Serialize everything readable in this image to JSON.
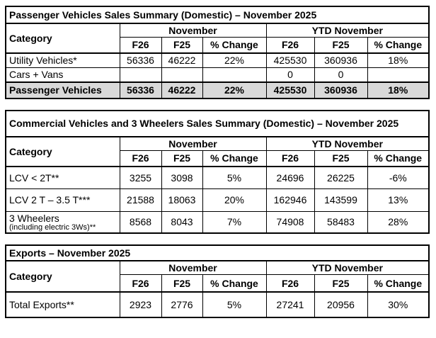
{
  "colors": {
    "highlight_row": "#d9d9d9",
    "border": "#000000",
    "text": "#000000",
    "background": "#ffffff"
  },
  "tables": [
    {
      "title": "Passenger Vehicles Sales Summary (Domestic) – November 2025",
      "col_category": "Category",
      "col_november": "November",
      "col_ytd": "YTD November",
      "sub": [
        "F26",
        "F25",
        "% Change",
        "F26",
        "F25",
        "% Change"
      ],
      "rows": [
        {
          "category": "Utility Vehicles*",
          "note": "",
          "values": [
            "56336",
            "46222",
            "22%",
            "425530",
            "360936",
            "18%"
          ]
        },
        {
          "category": "Cars + Vans",
          "note": "",
          "values": [
            "",
            "",
            "",
            "0",
            "0",
            ""
          ]
        },
        {
          "category": "Passenger Vehicles",
          "note": "",
          "values": [
            "56336",
            "46222",
            "22%",
            "425530",
            "360936",
            "18%"
          ]
        }
      ]
    },
    {
      "title": "Commercial Vehicles and 3 Wheelers Sales Summary (Domestic) – November 2025",
      "col_category": "Category",
      "col_november": "November",
      "col_ytd": "YTD November",
      "sub": [
        "F26",
        "F25",
        "% Change",
        "F26",
        "F25",
        "% Change"
      ],
      "rows": [
        {
          "category": "LCV < 2T**",
          "note": "",
          "values": [
            "3255",
            "3098",
            "5%",
            "24696",
            "26225",
            "-6%"
          ]
        },
        {
          "category": "LCV 2 T – 3.5 T***",
          "note": "",
          "values": [
            "21588",
            "18063",
            "20%",
            "162946",
            "143599",
            "13%"
          ]
        },
        {
          "category": "3 Wheelers",
          "note": "(including electric 3Ws)**",
          "values": [
            "8568",
            "8043",
            "7%",
            "74908",
            "58483",
            "28%"
          ]
        }
      ]
    },
    {
      "title": "Exports – November 2025",
      "col_category": "Category",
      "col_november": "November",
      "col_ytd": "YTD November",
      "sub": [
        "F26",
        "F25",
        "% Change",
        "F26",
        "F25",
        "% Change"
      ],
      "rows": [
        {
          "category": "Total Exports**",
          "note": "",
          "values": [
            "2923",
            "2776",
            "5%",
            "27241",
            "20956",
            "30%"
          ]
        }
      ]
    }
  ]
}
